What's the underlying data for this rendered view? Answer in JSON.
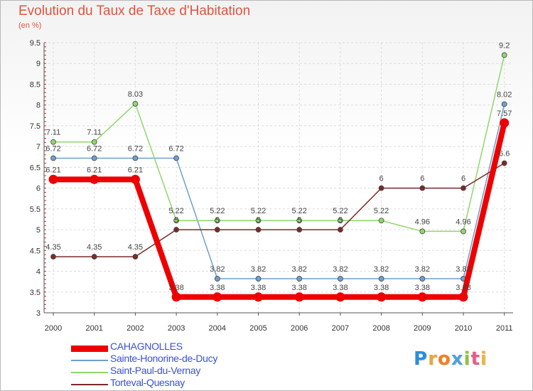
{
  "header": {
    "title": "Evolution du Taux de Taxe d'Habitation",
    "subtitle": "(en %)"
  },
  "logo": {
    "letters": [
      "P",
      "r",
      "o",
      "x",
      "i",
      "t",
      "i"
    ],
    "colors": [
      "#2b8fd8",
      "#e8a83a",
      "#f07e26",
      "#4aa3df",
      "#8dc63f",
      "#e85a8e",
      "#f0b43c"
    ]
  },
  "chart_data": {
    "type": "line",
    "title": "Evolution du Taux de Taxe d'Habitation",
    "ylabel": "(en %)",
    "xlabel": "",
    "x": [
      "2000",
      "2001",
      "2002",
      "2003",
      "2004",
      "2005",
      "2006",
      "2007",
      "2008",
      "2009",
      "2010",
      "2011"
    ],
    "ylim": [
      3,
      9.5
    ],
    "yticks": [
      "3",
      "3.5",
      "4",
      "4.5",
      "5",
      "5.5",
      "6",
      "6.5",
      "7",
      "7.5",
      "8",
      "8.5",
      "9",
      "9.5"
    ],
    "grid": true,
    "legend_position": "bottom-left",
    "series": [
      {
        "name": "CAHAGNOLLES",
        "color": "#ee0000",
        "values": [
          6.21,
          6.21,
          6.21,
          3.38,
          3.38,
          3.38,
          3.38,
          3.38,
          3.38,
          3.38,
          3.38,
          7.57
        ],
        "labels": [
          "6.21",
          "6.21",
          "6.21",
          "3.38",
          "3.38",
          "3.38",
          "3.38",
          "3.38",
          "3.38",
          "3.38",
          "3.38",
          "7.57"
        ]
      },
      {
        "name": "Sainte-Honorine-de-Ducy",
        "color": "#6e9fd0",
        "values": [
          6.72,
          6.72,
          6.72,
          6.72,
          3.82,
          3.82,
          3.82,
          3.82,
          3.82,
          3.82,
          3.82,
          8.02
        ],
        "labels": [
          "6.72",
          "6.72",
          "6.72",
          "6.72",
          "3.82",
          "3.82",
          "3.82",
          "3.82",
          "3.82",
          "3.82",
          "3.82",
          "8.02"
        ]
      },
      {
        "name": "Saint-Paul-du-Vernay",
        "color": "#8fd86a",
        "values": [
          7.11,
          7.11,
          8.03,
          5.22,
          5.22,
          5.22,
          5.22,
          5.22,
          5.22,
          4.96,
          4.96,
          9.2
        ],
        "labels": [
          "7.11",
          "7.11",
          "8.03",
          "5.22",
          "5.22",
          "5.22",
          "5.22",
          "5.22",
          "5.22",
          "4.96",
          "4.96",
          "9.2"
        ]
      },
      {
        "name": "Torteval-Quesnay",
        "color": "#7a2a2a",
        "values": [
          4.35,
          4.35,
          4.35,
          5,
          5,
          5,
          5,
          5,
          6,
          6,
          6,
          6.6
        ],
        "labels": [
          "4.35",
          "4.35",
          "4.35",
          "5",
          "5",
          "5",
          "5",
          "5",
          "6",
          "6",
          "6",
          "6.6"
        ]
      }
    ]
  }
}
